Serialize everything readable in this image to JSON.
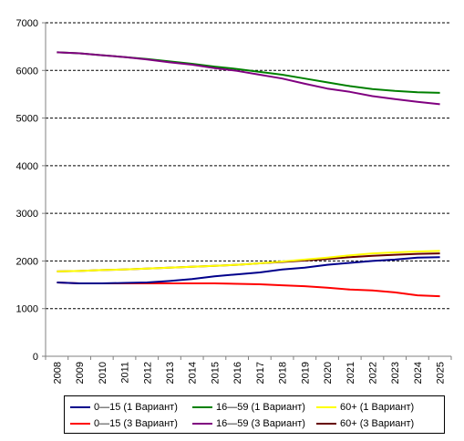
{
  "chart_data": {
    "type": "line",
    "title": "",
    "xlabel": "",
    "ylabel": "",
    "ylim": [
      0,
      7000
    ],
    "yticks": [
      "0",
      "1000",
      "2000",
      "3000",
      "4000",
      "5000",
      "6000",
      "7000"
    ],
    "grid": "horizontal dashed",
    "legend_position": "bottom",
    "categories": [
      "2008",
      "2009",
      "2010",
      "2011",
      "2012",
      "2013",
      "2014",
      "2015",
      "2016",
      "2017",
      "2018",
      "2019",
      "2020",
      "2021",
      "2022",
      "2023",
      "2024",
      "2025"
    ],
    "series": [
      {
        "name": "0—15 (1 Вариант)",
        "color": "#00008B",
        "values": [
          1550,
          1530,
          1530,
          1540,
          1550,
          1580,
          1620,
          1680,
          1720,
          1760,
          1820,
          1860,
          1920,
          1960,
          2000,
          2030,
          2070,
          2080
        ]
      },
      {
        "name": "16—59 (1 Вариант)",
        "color": "#008000",
        "values": [
          6380,
          6360,
          6320,
          6280,
          6240,
          6190,
          6140,
          6080,
          6030,
          5970,
          5910,
          5830,
          5750,
          5670,
          5610,
          5570,
          5540,
          5530
        ]
      },
      {
        "name": "60+ (1 Вариант)",
        "color": "#FFFF00",
        "values": [
          1780,
          1790,
          1810,
          1820,
          1840,
          1860,
          1880,
          1900,
          1920,
          1950,
          1990,
          2030,
          2070,
          2120,
          2160,
          2180,
          2200,
          2210
        ]
      },
      {
        "name": "0—15 (3 Вариант)",
        "color": "#FF0000",
        "values": [
          1550,
          1530,
          1530,
          1530,
          1530,
          1530,
          1530,
          1530,
          1520,
          1510,
          1490,
          1470,
          1440,
          1400,
          1380,
          1340,
          1280,
          1260
        ]
      },
      {
        "name": "16—59 (3 Вариант)",
        "color": "#800080",
        "values": [
          6380,
          6360,
          6320,
          6280,
          6230,
          6170,
          6120,
          6050,
          5990,
          5910,
          5830,
          5720,
          5620,
          5550,
          5460,
          5400,
          5340,
          5290
        ]
      },
      {
        "name": "60+ (3 Вариант)",
        "color": "#660000",
        "values": [
          1780,
          1790,
          1810,
          1820,
          1840,
          1860,
          1880,
          1900,
          1920,
          1950,
          1980,
          2010,
          2040,
          2080,
          2110,
          2130,
          2150,
          2160
        ]
      }
    ]
  }
}
